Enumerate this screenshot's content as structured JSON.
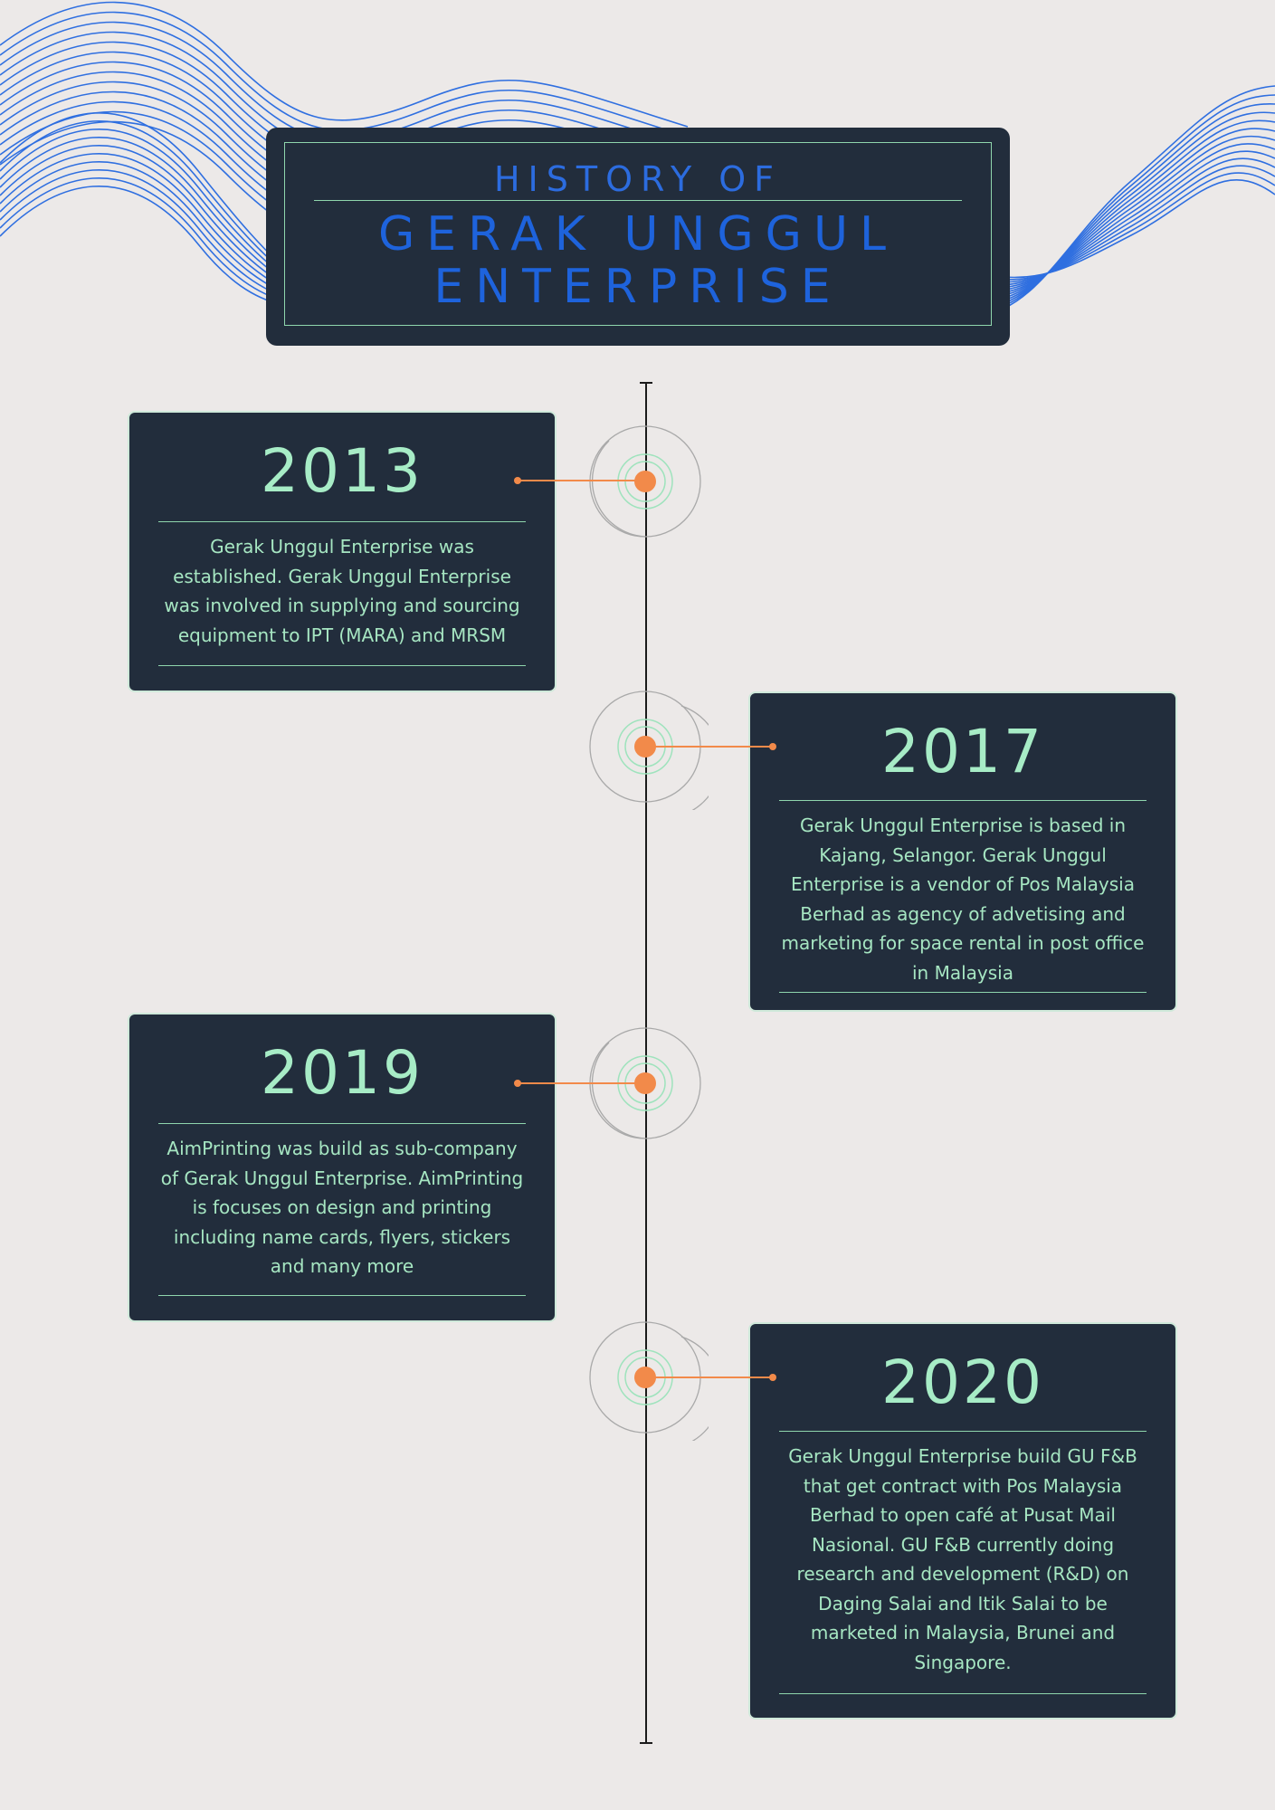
{
  "header": {
    "subtitle": "HISTORY OF",
    "title_line1": "GERAK UNGGUL",
    "title_line2": "ENTERPRISE"
  },
  "colors": {
    "background": "#ece9e8",
    "card": "#222d3c",
    "accent_green": "#a7ecc6",
    "accent_blue": "#1e63dc",
    "node_orange": "#f28a4a",
    "wave_blue": "#2f6fe0"
  },
  "timeline": [
    {
      "year": "2013",
      "text": "Gerak Unggul Enterprise was established. Gerak Unggul Enterprise was involved in supplying and sourcing equipment to IPT (MARA) and MRSM"
    },
    {
      "year": "2017",
      "text": "Gerak Unggul Enterprise is based in Kajang, Selangor. Gerak Unggul Enterprise is a vendor of Pos Malaysia Berhad as agency of advetising and marketing for space rental in post office in Malaysia"
    },
    {
      "year": "2019",
      "text": "AimPrinting was build as sub-company of Gerak Unggul Enterprise. AimPrinting is focuses on design and printing including name cards, flyers, stickers and many more"
    },
    {
      "year": "2020",
      "text": "Gerak Unggul Enterprise build GU F&B that get contract with Pos Malaysia Berhad to open café at Pusat Mail Nasional. GU F&B currently doing research and development (R&D) on Daging Salai and Itik Salai to be marketed in Malaysia, Brunei and Singapore."
    }
  ]
}
